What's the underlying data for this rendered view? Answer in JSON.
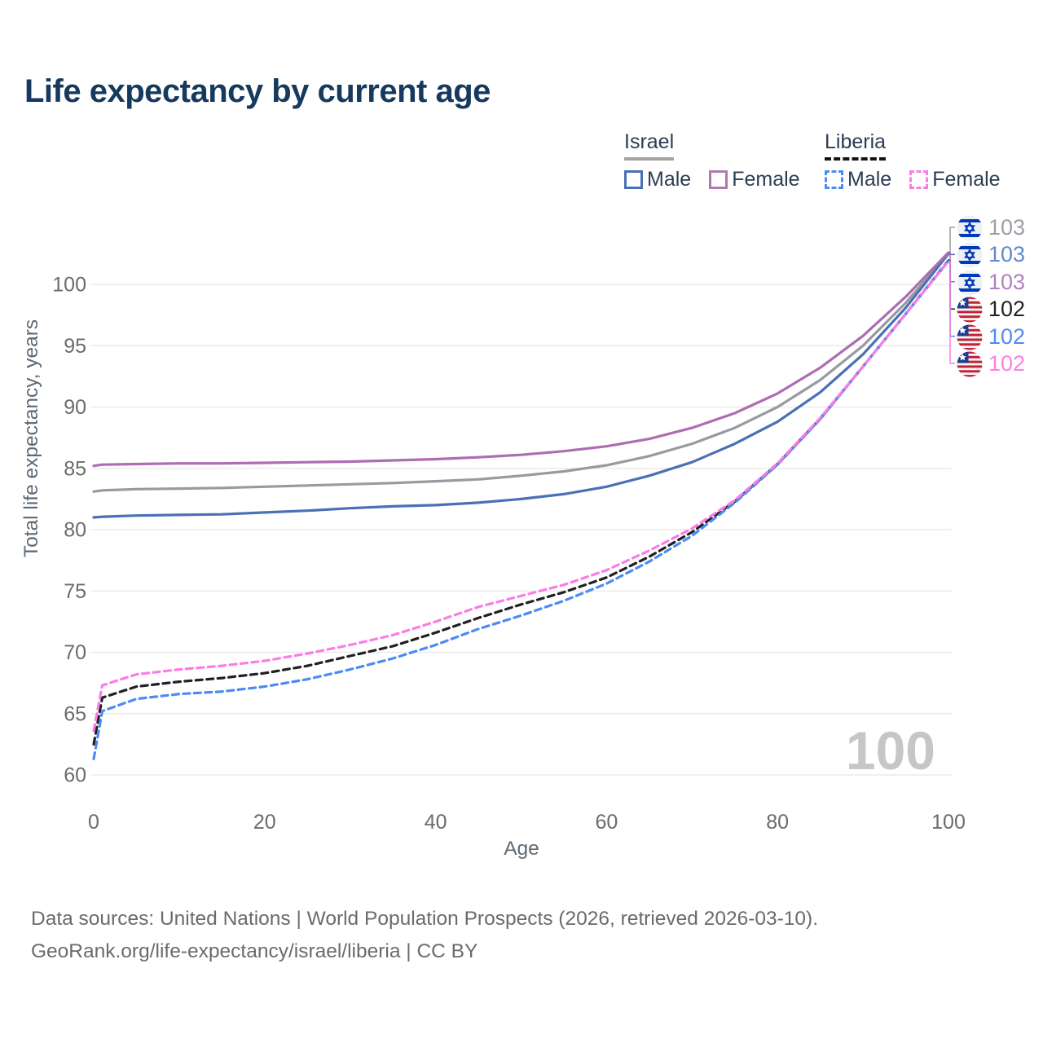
{
  "title": "Life expectancy by current age",
  "colors": {
    "title": "#16395e",
    "legend_text": "#2c3d53",
    "tick_label": "#6b6b6b",
    "axis_title": "#5e6974",
    "gridline": "#e8e8e8",
    "watermark": "#c6c6c6",
    "footer": "#6b6b6b"
  },
  "legend": {
    "groups": [
      {
        "country": "Israel",
        "line_style": "solid",
        "items": [
          {
            "label": "Male",
            "color": "#4a70b5"
          },
          {
            "label": "Female",
            "color": "#b278b0"
          }
        ]
      },
      {
        "country": "Liberia",
        "line_style": "dashed",
        "items": [
          {
            "label": "Male",
            "color": "#4b8bf2"
          },
          {
            "label": "Female",
            "color": "#fb7ce6"
          }
        ]
      }
    ]
  },
  "y_axis": {
    "label": "Total life expectancy, years",
    "ticks": [
      60,
      65,
      70,
      75,
      80,
      85,
      90,
      95,
      100
    ]
  },
  "x_axis": {
    "label": "Age",
    "ticks": [
      0,
      20,
      40,
      60,
      80,
      100
    ]
  },
  "watermark": "100",
  "footer": {
    "line1": "Data sources: United Nations | World Population Prospects (2026, retrieved 2026-03-10).",
    "line2": "GeoRank.org/life-expectancy/israel/liberia | CC BY"
  },
  "chart_data": {
    "type": "line",
    "xlabel": "Age",
    "ylabel": "Total life expectancy, years",
    "xlim": [
      0,
      100
    ],
    "ylim": [
      60,
      103
    ],
    "grid": "horizontal",
    "legend_position": "top-right",
    "series": [
      {
        "id": "israel-all",
        "country": "Israel",
        "sex": "All",
        "style": "solid",
        "color": "#979ba1",
        "end_label": "103",
        "end_label_color": "#9ba0a6",
        "flag": "flag-israel",
        "points": [
          [
            0,
            83.1
          ],
          [
            1,
            83.2
          ],
          [
            5,
            83.3
          ],
          [
            10,
            83.35
          ],
          [
            15,
            83.4
          ],
          [
            20,
            83.5
          ],
          [
            25,
            83.6
          ],
          [
            30,
            83.7
          ],
          [
            35,
            83.8
          ],
          [
            40,
            83.95
          ],
          [
            45,
            84.1
          ],
          [
            50,
            84.4
          ],
          [
            55,
            84.75
          ],
          [
            60,
            85.25
          ],
          [
            65,
            86.0
          ],
          [
            70,
            87.0
          ],
          [
            75,
            88.3
          ],
          [
            80,
            90.0
          ],
          [
            85,
            92.2
          ],
          [
            90,
            95.0
          ],
          [
            95,
            98.5
          ],
          [
            100,
            102.55
          ]
        ]
      },
      {
        "id": "israel-male",
        "country": "Israel",
        "sex": "Male",
        "style": "solid",
        "color": "#4a70b5",
        "end_label": "103",
        "end_label_color": "#6189cc",
        "flag": "flag-israel",
        "points": [
          [
            0,
            81.0
          ],
          [
            1,
            81.05
          ],
          [
            5,
            81.15
          ],
          [
            10,
            81.2
          ],
          [
            15,
            81.25
          ],
          [
            20,
            81.4
          ],
          [
            25,
            81.55
          ],
          [
            30,
            81.75
          ],
          [
            35,
            81.9
          ],
          [
            40,
            82.0
          ],
          [
            45,
            82.2
          ],
          [
            50,
            82.5
          ],
          [
            55,
            82.9
          ],
          [
            60,
            83.5
          ],
          [
            65,
            84.4
          ],
          [
            70,
            85.5
          ],
          [
            75,
            87.0
          ],
          [
            80,
            88.8
          ],
          [
            85,
            91.2
          ],
          [
            90,
            94.3
          ],
          [
            95,
            98.1
          ],
          [
            100,
            102.5
          ]
        ]
      },
      {
        "id": "israel-female",
        "country": "Israel",
        "sex": "Female",
        "style": "solid",
        "color": "#ae6cb3",
        "end_label": "103",
        "end_label_color": "#b57fc1",
        "flag": "flag-israel",
        "points": [
          [
            0,
            85.2
          ],
          [
            1,
            85.3
          ],
          [
            5,
            85.35
          ],
          [
            10,
            85.4
          ],
          [
            15,
            85.4
          ],
          [
            20,
            85.45
          ],
          [
            25,
            85.5
          ],
          [
            30,
            85.55
          ],
          [
            35,
            85.65
          ],
          [
            40,
            85.75
          ],
          [
            45,
            85.9
          ],
          [
            50,
            86.1
          ],
          [
            55,
            86.4
          ],
          [
            60,
            86.8
          ],
          [
            65,
            87.4
          ],
          [
            70,
            88.3
          ],
          [
            75,
            89.5
          ],
          [
            80,
            91.1
          ],
          [
            85,
            93.2
          ],
          [
            90,
            95.8
          ],
          [
            95,
            99.0
          ],
          [
            100,
            102.6
          ]
        ]
      },
      {
        "id": "liberia-all",
        "country": "Liberia",
        "sex": "All",
        "style": "dashed",
        "color": "#202024",
        "end_label": "102",
        "end_label_color": "#222222",
        "flag": "flag-liberia",
        "points": [
          [
            0,
            62.5
          ],
          [
            1,
            66.3
          ],
          [
            5,
            67.2
          ],
          [
            10,
            67.6
          ],
          [
            15,
            67.9
          ],
          [
            20,
            68.3
          ],
          [
            25,
            68.9
          ],
          [
            30,
            69.7
          ],
          [
            35,
            70.5
          ],
          [
            40,
            71.6
          ],
          [
            45,
            72.8
          ],
          [
            50,
            73.9
          ],
          [
            55,
            74.9
          ],
          [
            60,
            76.1
          ],
          [
            65,
            77.8
          ],
          [
            70,
            79.8
          ],
          [
            75,
            82.3
          ],
          [
            80,
            85.35
          ],
          [
            85,
            89.05
          ],
          [
            90,
            93.3
          ],
          [
            95,
            97.6
          ],
          [
            100,
            101.95
          ]
        ]
      },
      {
        "id": "liberia-male",
        "country": "Liberia",
        "sex": "Male",
        "style": "dashed",
        "color": "#4b8bf2",
        "end_label": "102",
        "end_label_color": "#4d8cf5",
        "flag": "flag-liberia",
        "points": [
          [
            0,
            61.3
          ],
          [
            1,
            65.2
          ],
          [
            5,
            66.2
          ],
          [
            10,
            66.6
          ],
          [
            15,
            66.8
          ],
          [
            20,
            67.2
          ],
          [
            25,
            67.8
          ],
          [
            30,
            68.6
          ],
          [
            35,
            69.5
          ],
          [
            40,
            70.6
          ],
          [
            45,
            71.9
          ],
          [
            50,
            73.0
          ],
          [
            55,
            74.2
          ],
          [
            60,
            75.6
          ],
          [
            65,
            77.4
          ],
          [
            70,
            79.5
          ],
          [
            75,
            82.2
          ],
          [
            80,
            85.3
          ],
          [
            85,
            89.0
          ],
          [
            90,
            93.3
          ],
          [
            95,
            97.6
          ],
          [
            100,
            101.9
          ]
        ]
      },
      {
        "id": "liberia-female",
        "country": "Liberia",
        "sex": "Female",
        "style": "dashed",
        "color": "#fb7ce6",
        "end_label": "102",
        "end_label_color": "#ff7ee3",
        "flag": "flag-liberia",
        "points": [
          [
            0,
            63.6
          ],
          [
            1,
            67.3
          ],
          [
            5,
            68.2
          ],
          [
            10,
            68.6
          ],
          [
            15,
            68.9
          ],
          [
            20,
            69.3
          ],
          [
            25,
            69.9
          ],
          [
            30,
            70.6
          ],
          [
            35,
            71.4
          ],
          [
            40,
            72.5
          ],
          [
            45,
            73.7
          ],
          [
            50,
            74.6
          ],
          [
            55,
            75.5
          ],
          [
            60,
            76.7
          ],
          [
            65,
            78.3
          ],
          [
            70,
            80.1
          ],
          [
            75,
            82.4
          ],
          [
            80,
            85.4
          ],
          [
            85,
            89.1
          ],
          [
            90,
            93.3
          ],
          [
            95,
            97.6
          ],
          [
            100,
            101.9
          ]
        ]
      }
    ]
  }
}
